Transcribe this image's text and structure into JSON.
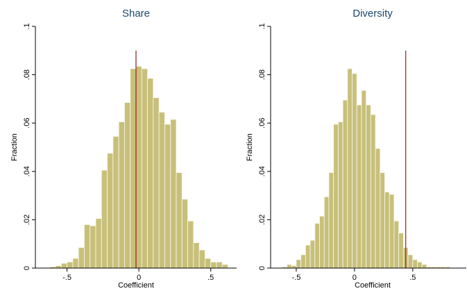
{
  "chart_data": [
    {
      "type": "bar",
      "title": "Share",
      "xlabel": "Coefficient",
      "ylabel": "Fraction",
      "bar_color": "#c8c07a",
      "bar_edge_color": "#fafaf0",
      "ref_line_color": "#9b1c1c",
      "title_color": "#1a476f",
      "bin_width": 0.04,
      "bin_starts": [
        -0.62,
        -0.58,
        -0.54,
        -0.5,
        -0.46,
        -0.42,
        -0.38,
        -0.34,
        -0.3,
        -0.26,
        -0.22,
        -0.18,
        -0.14,
        -0.1,
        -0.06,
        -0.02,
        0.02,
        0.06,
        0.1,
        0.14,
        0.18,
        0.22,
        0.26,
        0.3,
        0.34,
        0.38,
        0.42,
        0.46,
        0.5,
        0.54,
        0.58
      ],
      "values": [
        0.0005,
        0.001,
        0.002,
        0.0025,
        0.004,
        0.0085,
        0.018,
        0.0175,
        0.0205,
        0.0405,
        0.0475,
        0.0545,
        0.0605,
        0.0685,
        0.0825,
        0.0835,
        0.0825,
        0.0785,
        0.0705,
        0.0645,
        0.0595,
        0.0615,
        0.0395,
        0.0285,
        0.0195,
        0.0105,
        0.0075,
        0.004,
        0.0025,
        0.0025,
        0.0015
      ],
      "ref_line": {
        "x": -0.02,
        "y_top": 0.09
      },
      "xlim": [
        -0.72,
        0.68
      ],
      "ylim": [
        0,
        0.1
      ],
      "xticks": [
        -0.5,
        0,
        0.5
      ],
      "xtick_labels": [
        "-.5",
        "0",
        ".5"
      ],
      "yticks": [
        0,
        0.02,
        0.04,
        0.06,
        0.08,
        0.1
      ],
      "ytick_labels": [
        "0",
        ".02",
        ".04",
        ".06",
        ".08",
        ".1"
      ]
    },
    {
      "type": "bar",
      "title": "Diversity",
      "xlabel": "Coefficient",
      "ylabel": "Fraction",
      "bar_color": "#c8c07a",
      "bar_edge_color": "#fafaf0",
      "ref_line_color": "#9b1c1c",
      "title_color": "#1a476f",
      "bin_width": 0.04,
      "bin_starts": [
        -0.62,
        -0.58,
        -0.54,
        -0.5,
        -0.46,
        -0.42,
        -0.38,
        -0.34,
        -0.3,
        -0.26,
        -0.22,
        -0.18,
        -0.14,
        -0.1,
        -0.06,
        -0.02,
        0.02,
        0.06,
        0.1,
        0.14,
        0.18,
        0.22,
        0.26,
        0.3,
        0.34,
        0.38,
        0.42,
        0.46,
        0.5,
        0.54,
        0.58,
        0.62,
        0.66,
        0.7,
        0.74,
        0.78
      ],
      "values": [
        0.0005,
        0.0015,
        0.001,
        0.0035,
        0.0055,
        0.0095,
        0.0115,
        0.0185,
        0.0215,
        0.0295,
        0.0395,
        0.0595,
        0.0605,
        0.0695,
        0.0825,
        0.0805,
        0.0675,
        0.0735,
        0.0675,
        0.0635,
        0.0495,
        0.0395,
        0.0315,
        0.0305,
        0.0195,
        0.0145,
        0.0085,
        0.0055,
        0.0035,
        0.0025,
        0.0015,
        0.0005,
        0.0005,
        0.0005,
        0.0005,
        0.0005
      ],
      "ref_line": {
        "x": 0.44,
        "y_top": 0.09
      },
      "xlim": [
        -0.72,
        0.96
      ],
      "ylim": [
        0,
        0.1
      ],
      "xticks": [
        -0.5,
        0,
        0.5
      ],
      "xtick_labels": [
        "-.5",
        "0",
        ".5"
      ],
      "yticks": [
        0,
        0.02,
        0.04,
        0.06,
        0.08,
        0.1
      ],
      "ytick_labels": [
        "0",
        ".02",
        ".04",
        ".06",
        ".08",
        ".1"
      ]
    }
  ]
}
